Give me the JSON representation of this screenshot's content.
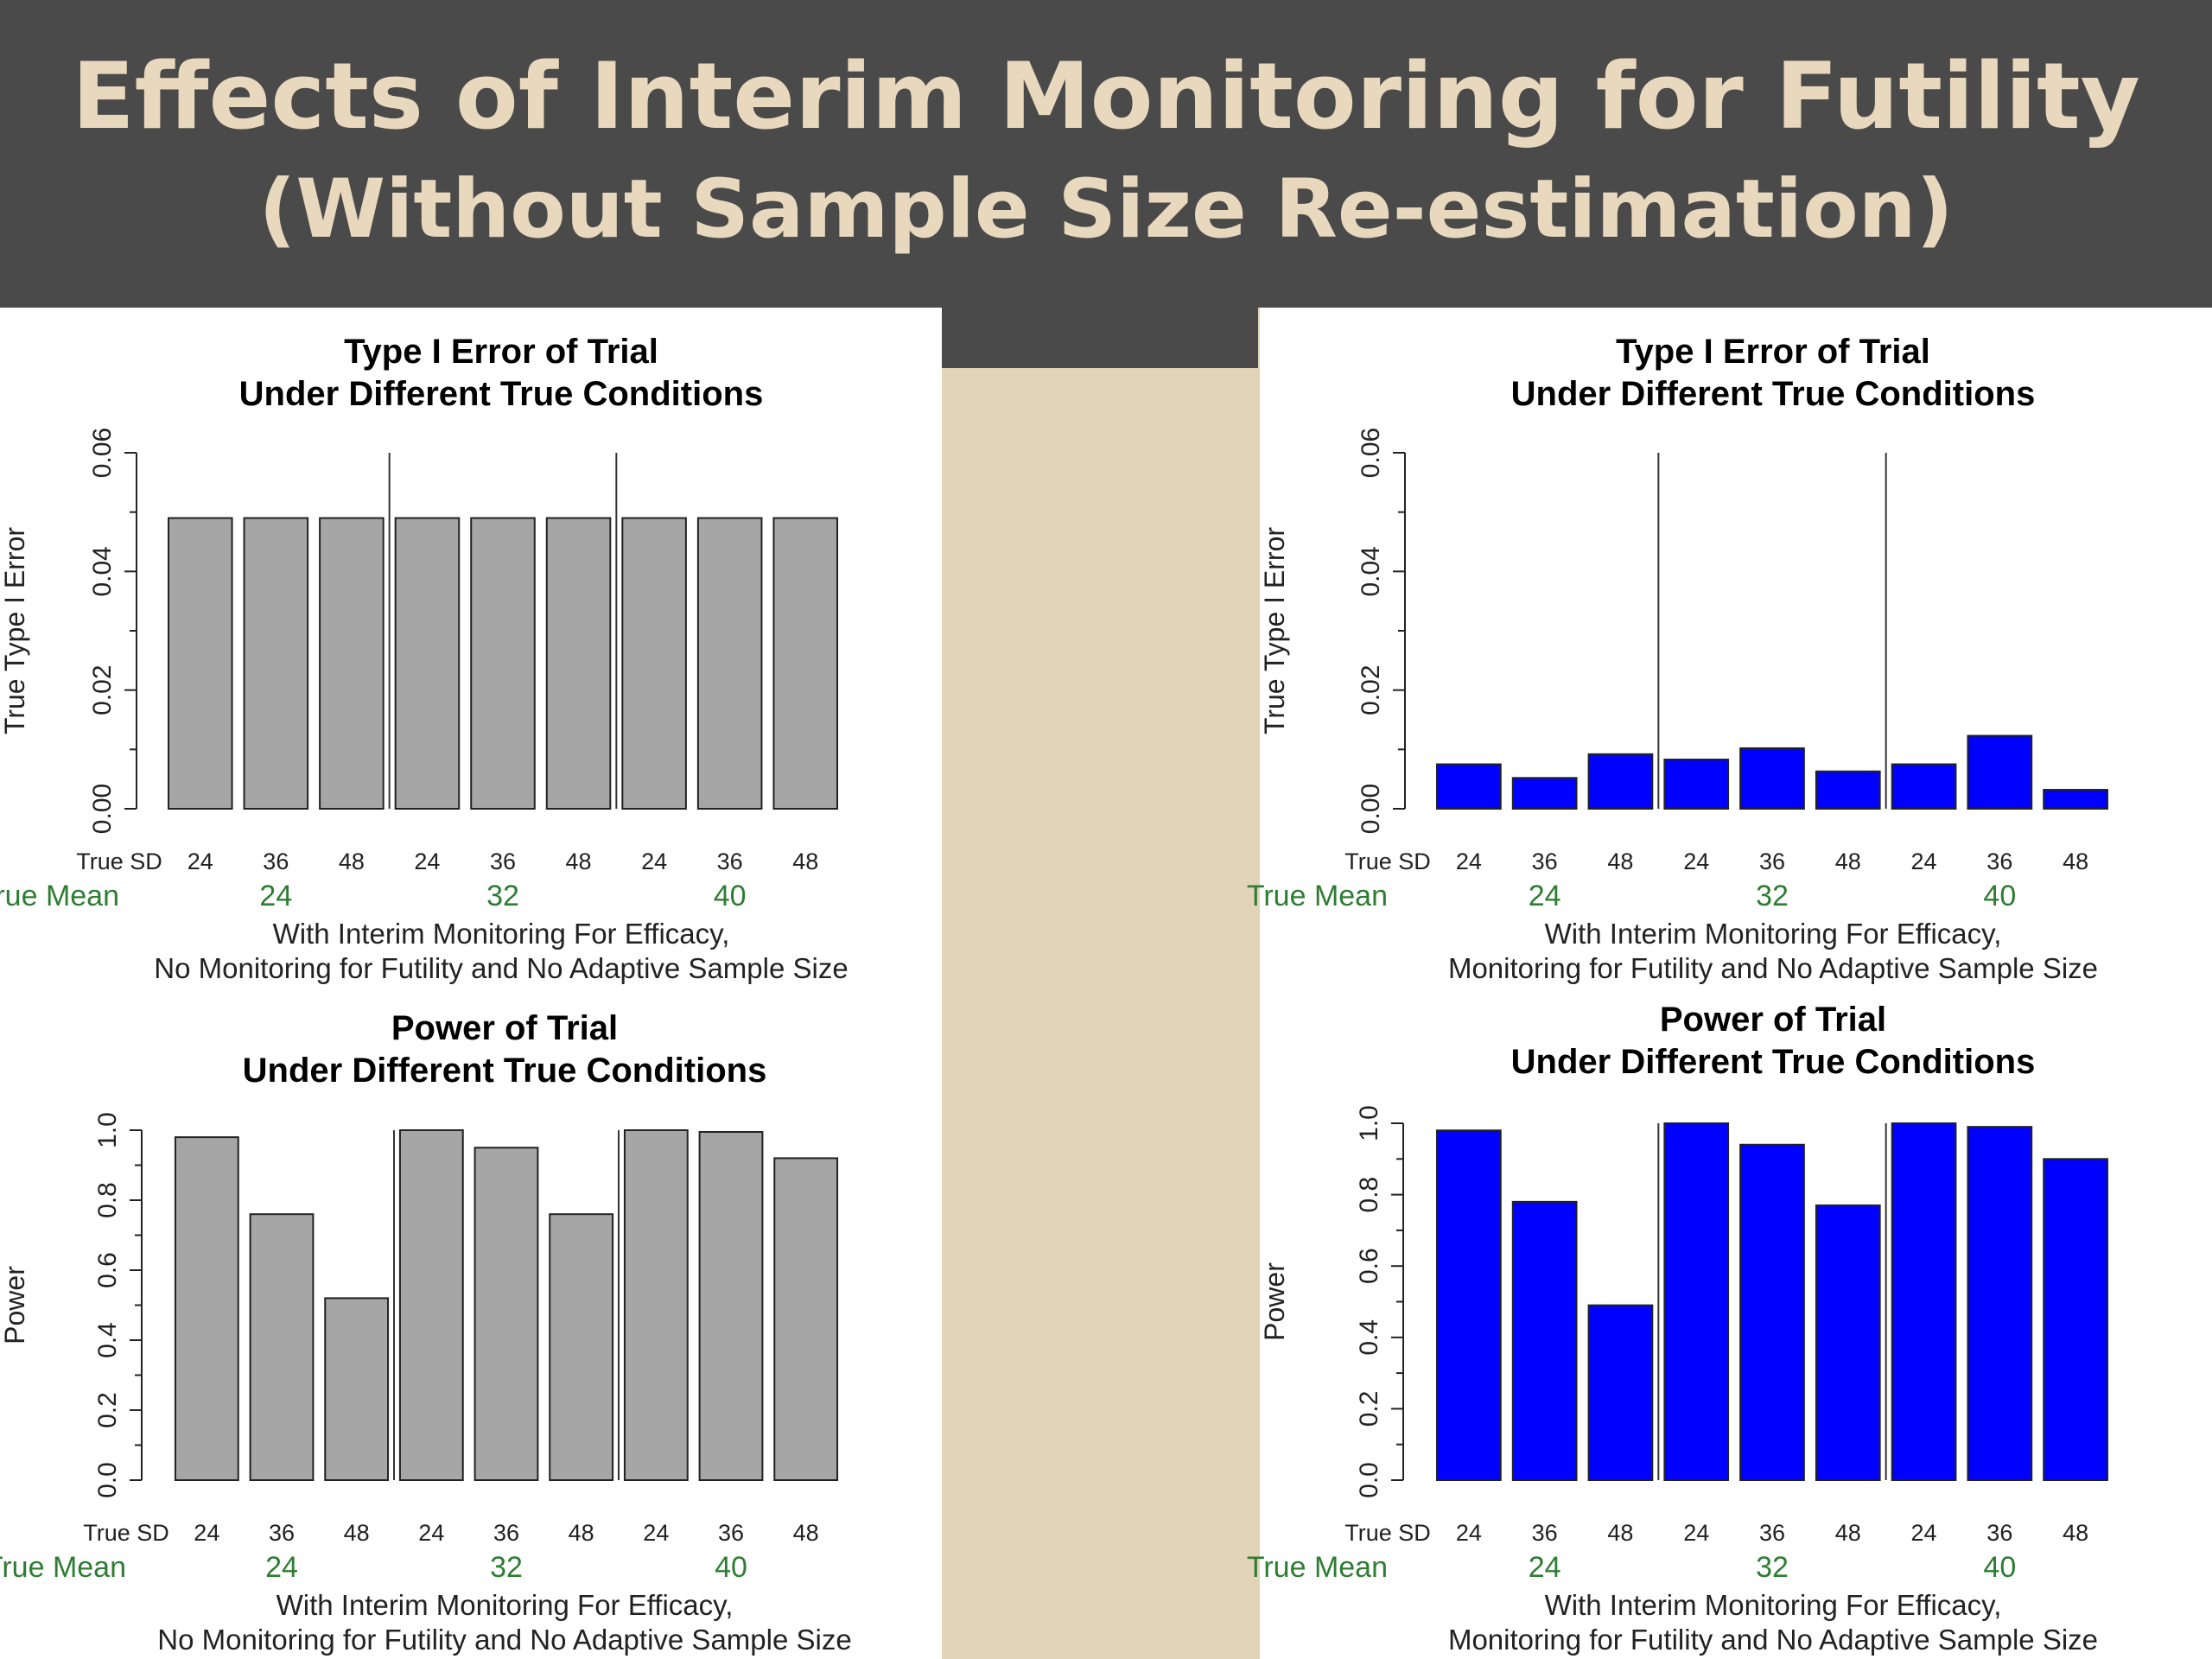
{
  "slide": {
    "title": "Effects of Interim Monitoring for Futility",
    "subtitle": "(Without Sample Size Re-estimation)"
  },
  "colors": {
    "header_bg": "#4a4a4a",
    "title_text": "#e8d8bd",
    "slide_bg": "#e2d4b8",
    "gray_bar": "#a6a6a6",
    "blue_bar": "#0000ff",
    "mean_label": "#2e7d32"
  },
  "chart_data": [
    {
      "type": "bar",
      "title": [
        "Type I Error of Trial",
        "Under Different True Conditions"
      ],
      "ylabel": "True Type I Error",
      "ylim": [
        0,
        0.06
      ],
      "yticks": [
        "0.00",
        "0.02",
        "0.04",
        "0.06"
      ],
      "sd_label": "True SD",
      "sd_values": [
        "24",
        "36",
        "48",
        "24",
        "36",
        "48",
        "24",
        "36",
        "48"
      ],
      "mean_label": "True Mean",
      "mean_values": [
        "24",
        "32",
        "40"
      ],
      "values": [
        0.049,
        0.049,
        0.049,
        0.049,
        0.049,
        0.049,
        0.049,
        0.049,
        0.049
      ],
      "bar_color": "#a6a6a6",
      "caption": [
        "With Interim Monitoring For Efficacy,",
        "No Monitoring for Futility and No Adaptive Sample Size"
      ]
    },
    {
      "type": "bar",
      "title": [
        "Type I Error of Trial",
        "Under Different True Conditions"
      ],
      "ylabel": "True Type I Error",
      "ylim": [
        0,
        0.06
      ],
      "yticks": [
        "0.00",
        "0.02",
        "0.04",
        "0.06"
      ],
      "sd_label": "True SD",
      "sd_values": [
        "24",
        "36",
        "48",
        "24",
        "36",
        "48",
        "24",
        "36",
        "48"
      ],
      "mean_label": "True Mean",
      "mean_values": [
        "24",
        "32",
        "40"
      ],
      "values": [
        0.0075,
        0.0052,
        0.0092,
        0.0083,
        0.0102,
        0.0063,
        0.0075,
        0.0123,
        0.0032
      ],
      "bar_color": "#0000ff",
      "caption": [
        "With Interim Monitoring For Efficacy,",
        "Monitoring for Futility and No Adaptive Sample Size"
      ]
    },
    {
      "type": "bar",
      "title": [
        "Power of Trial",
        "Under Different True Conditions"
      ],
      "ylabel": "Power",
      "ylim": [
        0,
        1.0
      ],
      "yticks": [
        "0.0",
        "0.2",
        "0.4",
        "0.6",
        "0.8",
        "1.0"
      ],
      "sd_label": "True SD",
      "sd_values": [
        "24",
        "36",
        "48",
        "24",
        "36",
        "48",
        "24",
        "36",
        "48"
      ],
      "mean_label": "True Mean",
      "mean_values": [
        "24",
        "32",
        "40"
      ],
      "values": [
        0.98,
        0.76,
        0.52,
        1.0,
        0.95,
        0.76,
        1.0,
        0.995,
        0.92
      ],
      "bar_color": "#a6a6a6",
      "caption": [
        "With Interim Monitoring For Efficacy,",
        "No Monitoring for Futility and No Adaptive Sample Size"
      ]
    },
    {
      "type": "bar",
      "title": [
        "Power of Trial",
        "Under Different True Conditions"
      ],
      "ylabel": "Power",
      "ylim": [
        0,
        1.0
      ],
      "yticks": [
        "0.0",
        "0.2",
        "0.4",
        "0.6",
        "0.8",
        "1.0"
      ],
      "sd_label": "True SD",
      "sd_values": [
        "24",
        "36",
        "48",
        "24",
        "36",
        "48",
        "24",
        "36",
        "48"
      ],
      "mean_label": "True Mean",
      "mean_values": [
        "24",
        "32",
        "40"
      ],
      "values": [
        0.98,
        0.78,
        0.49,
        1.0,
        0.94,
        0.77,
        1.0,
        0.99,
        0.9
      ],
      "bar_color": "#0000ff",
      "caption": [
        "With Interim Monitoring For Efficacy,",
        "Monitoring for Futility and No Adaptive Sample Size"
      ]
    }
  ]
}
